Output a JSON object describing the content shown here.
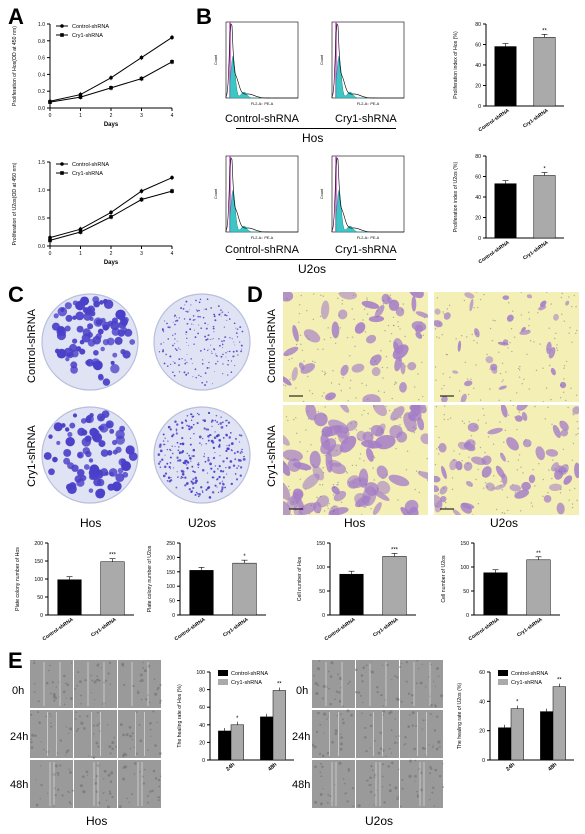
{
  "panels": {
    "A": "A",
    "B": "B",
    "C": "C",
    "D": "D",
    "E": "E"
  },
  "legend": {
    "control": "Control-shRNA",
    "cry1": "Cry1-shRNA"
  },
  "groups": {
    "hos": "Hos",
    "u2os": "U2os"
  },
  "flow": {
    "xlabel": "FL2-A:: PE-A",
    "ylabel": "Count"
  },
  "times": [
    "0h",
    "24h",
    "48h"
  ],
  "colors": {
    "control": "#000000",
    "cry1": "#aaaaaa",
    "crystal_violet": "#4a3fc8",
    "transwell_bg": "#f3efb5",
    "transwell_cell": "#a57ec7"
  },
  "chart_data": [
    {
      "id": "A-top",
      "type": "line",
      "x": [
        0,
        1,
        2,
        3,
        4
      ],
      "xlabel": "Days",
      "ylabel": "Proliferation of Hos(OD at 450 nm)",
      "ylim": [
        0,
        1.0
      ],
      "yticks": [
        "0.0",
        "0.2",
        "0.4",
        "0.6",
        "0.8",
        "1.0"
      ],
      "series": [
        {
          "name": "Control-shRNA",
          "values": [
            0.08,
            0.16,
            0.36,
            0.6,
            0.84
          ]
        },
        {
          "name": "Cry1-shRNA",
          "values": [
            0.07,
            0.13,
            0.24,
            0.35,
            0.55
          ]
        }
      ]
    },
    {
      "id": "A-bottom",
      "type": "line",
      "x": [
        0,
        1,
        2,
        3,
        4
      ],
      "xlabel": "Days",
      "ylabel": "Proliferation of U2os(OD at 450 nm)",
      "ylim": [
        0,
        1.5
      ],
      "yticks": [
        "0.0",
        "0.5",
        "1.0",
        "1.5"
      ],
      "series": [
        {
          "name": "Control-shRNA",
          "values": [
            0.15,
            0.3,
            0.6,
            0.98,
            1.22
          ]
        },
        {
          "name": "Cry1-shRNA",
          "values": [
            0.1,
            0.25,
            0.52,
            0.83,
            0.98
          ]
        }
      ]
    },
    {
      "id": "B-top",
      "type": "bar",
      "categories": [
        "Control-shRNA",
        "Cry1-shRNA"
      ],
      "values": [
        58,
        67
      ],
      "ylabel": "Proliferation index of Hos (%)",
      "ylim": [
        0,
        80
      ],
      "yticks": [
        "0",
        "20",
        "40",
        "60",
        "80"
      ],
      "sig": [
        "",
        "**"
      ]
    },
    {
      "id": "B-bottom",
      "type": "bar",
      "categories": [
        "Control-shRNA",
        "Cry1-shRNA"
      ],
      "values": [
        53,
        61
      ],
      "ylabel": "Proliferation index of U2os (%)",
      "ylim": [
        0,
        80
      ],
      "yticks": [
        "0",
        "20",
        "40",
        "60",
        "80"
      ],
      "sig": [
        "",
        "*"
      ]
    },
    {
      "id": "C-hos",
      "type": "bar",
      "categories": [
        "Control-shRNA",
        "Cry1-shRNA"
      ],
      "values": [
        98,
        148
      ],
      "ylabel": "Plate colony number of Hos",
      "ylim": [
        0,
        200
      ],
      "yticks": [
        "0",
        "50",
        "100",
        "150",
        "200"
      ],
      "sig": [
        "",
        "***"
      ]
    },
    {
      "id": "C-u2os",
      "type": "bar",
      "categories": [
        "Control-shRNA",
        "Cry1-shRNA"
      ],
      "values": [
        155,
        180
      ],
      "ylabel": "Plate colony number of U2os",
      "ylim": [
        0,
        250
      ],
      "yticks": [
        "0",
        "50",
        "100",
        "150",
        "200",
        "250"
      ],
      "sig": [
        "",
        "*"
      ]
    },
    {
      "id": "D-hos",
      "type": "bar",
      "categories": [
        "Control-shRNA",
        "Cry1-shRNA"
      ],
      "values": [
        85,
        122
      ],
      "ylabel": "Cell number of Hos",
      "ylim": [
        0,
        150
      ],
      "yticks": [
        "0",
        "50",
        "100",
        "150"
      ],
      "sig": [
        "",
        "***"
      ]
    },
    {
      "id": "D-u2os",
      "type": "bar",
      "categories": [
        "Control-shRNA",
        "Cry1-shRNA"
      ],
      "values": [
        88,
        115
      ],
      "ylabel": "Cell number of U2os",
      "ylim": [
        0,
        150
      ],
      "yticks": [
        "0",
        "50",
        "100",
        "150"
      ],
      "sig": [
        "",
        "**"
      ]
    },
    {
      "id": "E-hos",
      "type": "bar",
      "categories": [
        "24h",
        "48h"
      ],
      "series": [
        {
          "name": "Control-shRNA",
          "values": [
            33,
            49
          ]
        },
        {
          "name": "Cry1-shRNA",
          "values": [
            40,
            79
          ]
        }
      ],
      "ylabel": "The healing rate of Hos (%)",
      "ylim": [
        0,
        100
      ],
      "yticks": [
        "0",
        "20",
        "40",
        "60",
        "80",
        "100"
      ],
      "sig": [
        "*",
        "**"
      ]
    },
    {
      "id": "E-u2os",
      "type": "bar",
      "categories": [
        "24h",
        "48h"
      ],
      "series": [
        {
          "name": "Control-shRNA",
          "values": [
            22,
            33
          ]
        },
        {
          "name": "Cry1-shRNA",
          "values": [
            35,
            50
          ]
        }
      ],
      "ylabel": "The healing rate of U2os (%)",
      "ylim": [
        0,
        60
      ],
      "yticks": [
        "0",
        "20",
        "40",
        "60"
      ],
      "sig": [
        "*",
        "**"
      ]
    }
  ]
}
